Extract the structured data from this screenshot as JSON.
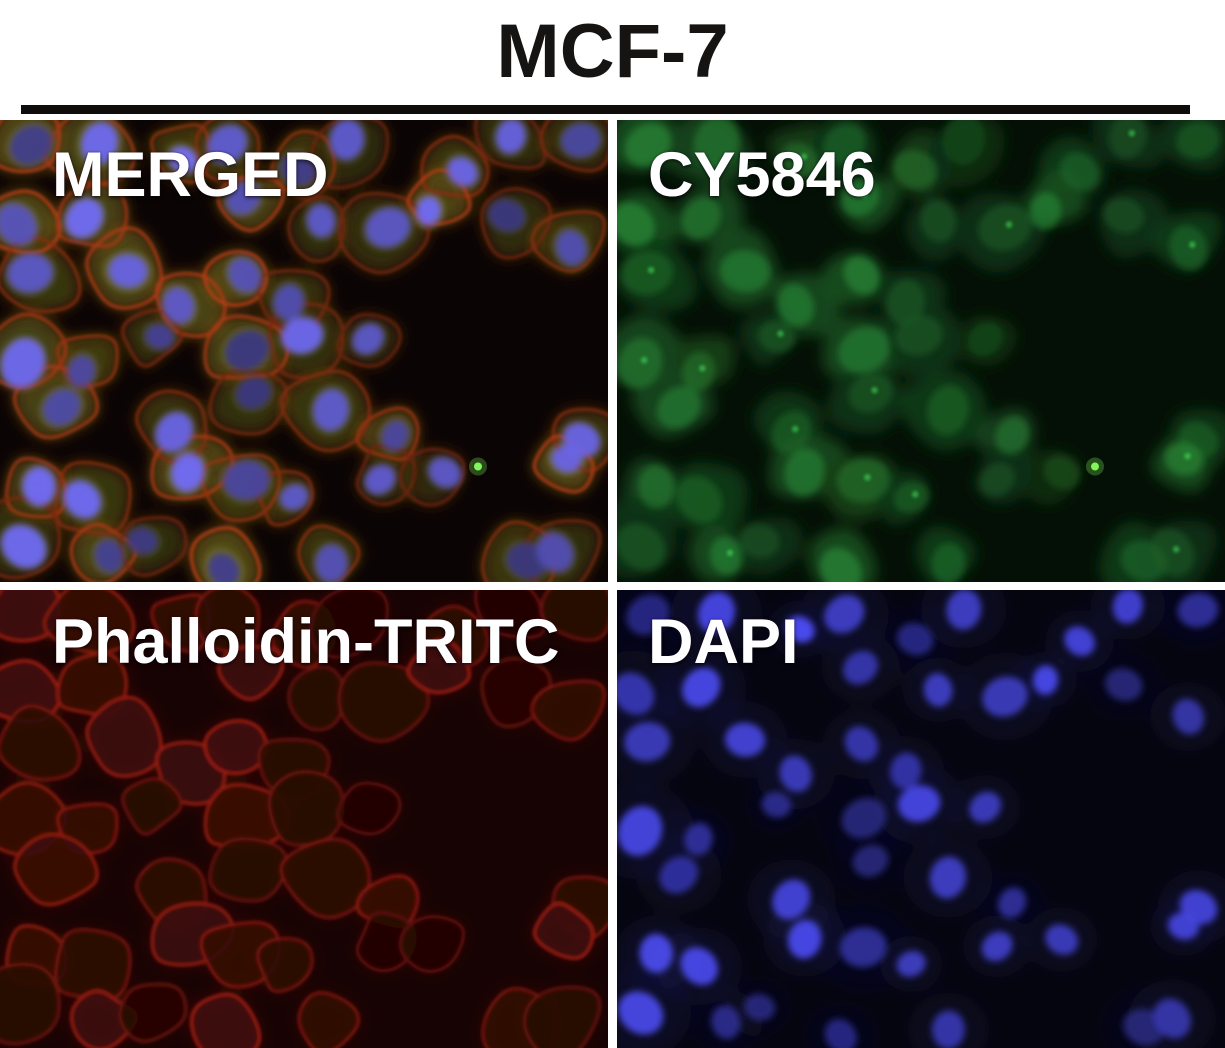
{
  "figure": {
    "title": "MCF-7",
    "panels": [
      {
        "id": "merged",
        "label": "MERGED"
      },
      {
        "id": "cy",
        "label": "CY5846"
      },
      {
        "id": "tritc",
        "label": "Phalloidin-TRITC"
      },
      {
        "id": "dapi",
        "label": "DAPI"
      }
    ],
    "colors": {
      "page_background": "#ffffff",
      "title_text": "#161412",
      "rule": "#0e0d0b",
      "panel_label_text": "#ffffff",
      "merged_background": "#0a0504",
      "cy5846_background": "#041005",
      "tritc_background": "#170303",
      "dapi_background": "#05050f",
      "merged_cytoplasm_olive": "#403e12",
      "merged_membrane_red": "#8a2e10",
      "merged_nucleus_blue": "#5854c4",
      "cy5846_signal_green": "#1e6428",
      "tritc_signal_red": "#78170f",
      "dapi_signal_blue": "#3a3aba",
      "bright_speck_green": "#86ff5e"
    }
  }
}
